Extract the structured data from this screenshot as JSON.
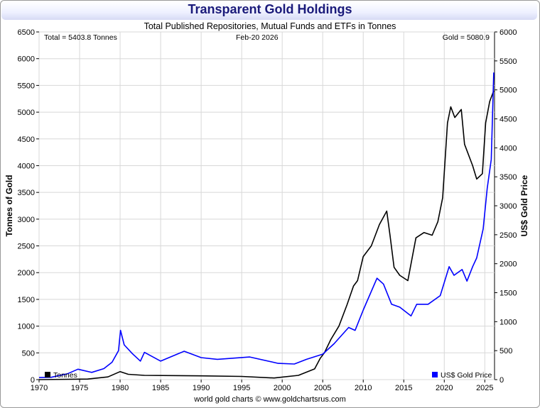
{
  "chart_data": {
    "type": "line",
    "title": "Transparent Gold Holdings",
    "subtitle": "Total Published Repositories, Mutual Funds and ETFs in Tonnes",
    "ylabel_left": "Tonnes of Gold",
    "ylabel_right": "US$ Gold Price",
    "footer": "world gold charts © www.goldchartsrus.com",
    "annotations": {
      "total": "Total = 5403.8 Tonnes",
      "date": "Feb-20  2026",
      "gold": "Gold = 5080.9"
    },
    "xlim": [
      1970,
      2026.2
    ],
    "ylim_left": [
      0,
      6500
    ],
    "ylim_right": [
      0,
      6000
    ],
    "x_ticks": [
      1970,
      1975,
      1980,
      1985,
      1990,
      1995,
      2000,
      2005,
      2010,
      2015,
      2020,
      2025
    ],
    "y_left_ticks": [
      0,
      500,
      1000,
      1500,
      2000,
      2500,
      3000,
      3500,
      4000,
      4500,
      5000,
      5500,
      6000,
      6500
    ],
    "y_right_ticks": [
      0,
      500,
      1000,
      1500,
      2000,
      2500,
      3000,
      3500,
      4000,
      4500,
      5000,
      5500,
      6000
    ],
    "grid": true,
    "legend": [
      {
        "label": "Tonnes",
        "color": "#000000",
        "position": "bottom-left"
      },
      {
        "label": "US$ Gold Price",
        "color": "#0000ff",
        "position": "bottom-right"
      }
    ],
    "series": [
      {
        "name": "Tonnes",
        "axis": "left",
        "color": "#000000",
        "x": [
          1970,
          1976,
          1978.5,
          1980,
          1981,
          1983,
          1990,
          1995,
          1999,
          2002,
          2004,
          2004.7,
          2005.2,
          2006,
          2007,
          2008,
          2008.8,
          2009.3,
          2010,
          2011,
          2012,
          2012.9,
          2013.3,
          2013.8,
          2014.5,
          2015.5,
          2016,
          2016.5,
          2017.5,
          2018.5,
          2019.2,
          2019.8,
          2020.4,
          2020.8,
          2021.3,
          2022.1,
          2022.5,
          2023.5,
          2024,
          2024.7,
          2025.1,
          2025.6,
          2026.1
        ],
        "y": [
          0,
          10,
          50,
          150,
          100,
          80,
          70,
          60,
          30,
          80,
          200,
          400,
          500,
          750,
          1000,
          1400,
          1750,
          1850,
          2300,
          2500,
          2900,
          3150,
          2700,
          2100,
          1950,
          1850,
          2250,
          2650,
          2750,
          2700,
          2950,
          3400,
          4800,
          5100,
          4900,
          5050,
          4400,
          4000,
          3750,
          3850,
          4800,
          5200,
          5400
        ]
      },
      {
        "name": "US$ Gold Price",
        "axis": "right",
        "color": "#0000ff",
        "x": [
          1970,
          1971.5,
          1973.5,
          1974.8,
          1976.5,
          1978,
          1979,
          1979.8,
          1980.05,
          1980.5,
          1981.5,
          1982.5,
          1983,
          1985,
          1987.9,
          1990,
          1992,
          1996,
          1999.5,
          2001.5,
          2003,
          2005,
          2006.4,
          2008.2,
          2009,
          2010,
          2011.7,
          2012.5,
          2013.5,
          2014.5,
          2015.9,
          2016.6,
          2018,
          2019.5,
          2020.6,
          2021.2,
          2022.2,
          2022.8,
          2023.5,
          2024,
          2024.8,
          2025.3,
          2025.8,
          2026.1
        ],
        "y": [
          36,
          40,
          100,
          180,
          125,
          190,
          300,
          500,
          850,
          600,
          450,
          320,
          470,
          320,
          490,
          380,
          350,
          390,
          280,
          270,
          350,
          440,
          620,
          900,
          850,
          1200,
          1750,
          1650,
          1300,
          1250,
          1100,
          1300,
          1300,
          1450,
          1950,
          1800,
          1900,
          1700,
          1950,
          2100,
          2600,
          3300,
          3800,
          5300
        ]
      }
    ]
  }
}
